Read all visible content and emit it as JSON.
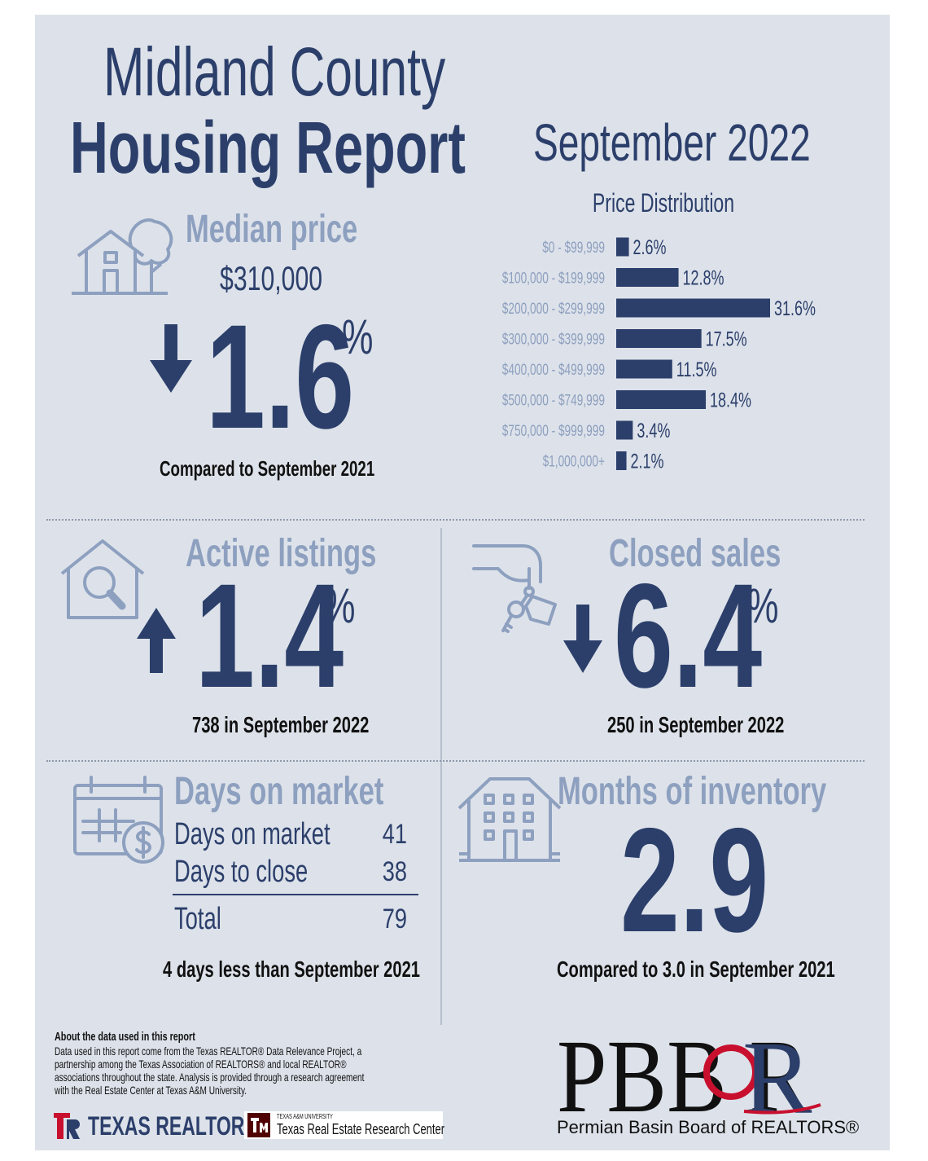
{
  "header": {
    "title_line1": "Midland County",
    "title_line2": "Housing Report",
    "period": "September 2022"
  },
  "median_price": {
    "label": "Median price",
    "value": "$310,000",
    "change": "1.6",
    "percent_sign": "%",
    "direction": "down",
    "comparison": "Compared to September 2021"
  },
  "chart_data": {
    "type": "bar",
    "orientation": "horizontal",
    "title": "Price Distribution",
    "categories": [
      "$0 - $99,999",
      "$100,000 - $199,999",
      "$200,000 - $299,999",
      "$300,000 - $399,999",
      "$400,000 - $499,999",
      "$500,000 - $749,999",
      "$750,000 - $999,999",
      "$1,000,000+"
    ],
    "values": [
      2.6,
      12.8,
      31.6,
      17.5,
      11.5,
      18.4,
      3.4,
      2.1
    ],
    "value_labels": [
      "2.6%",
      "12.8%",
      "31.6%",
      "17.5%",
      "11.5%",
      "18.4%",
      "3.4%",
      "2.1%"
    ],
    "bar_color": "#2c3f6b"
  },
  "active_listings": {
    "label": "Active listings",
    "change": "1.4",
    "percent_sign": "%",
    "direction": "up",
    "detail": "738 in September 2022"
  },
  "closed_sales": {
    "label": "Closed sales",
    "change": "6.4",
    "percent_sign": "%",
    "direction": "down",
    "detail": "250 in September 2022"
  },
  "days_on_market": {
    "label": "Days on market",
    "rows": [
      {
        "label": "Days on market",
        "value": "41"
      },
      {
        "label": "Days to close",
        "value": "38"
      }
    ],
    "total_label": "Total",
    "total_value": "79",
    "comparison": "4 days less than September 2021"
  },
  "months_inventory": {
    "label": "Months of inventory",
    "value": "2.9",
    "comparison": "Compared to 3.0 in September 2021"
  },
  "footer": {
    "about_title": "About the data used in this report",
    "about_lines": [
      "Data used in this report come from the Texas REALTOR® Data Relevance Project, a",
      "partnership among the Texas Association of REALTORS® and local REALTOR®",
      "associations throughout the state. Analysis is provided through a research agreement",
      "with the Real Estate Center at Texas A&M University."
    ],
    "texas_realtors_logo": "TEXAS REALTORS",
    "tamu_small": "TEXAS A&M UNIVERSITY",
    "tamu_center": "Texas Real Estate Research Center",
    "pbbor_letters": "PBBOR",
    "pbbor_name": "Permian Basin Board of REALTORS®"
  },
  "colors": {
    "navy": "#2c3f6b",
    "muted_label": "#8ea0bf",
    "card_bg": "#dde2ea",
    "texas_red": "#c8102e",
    "tamu_maroon": "#500000"
  }
}
